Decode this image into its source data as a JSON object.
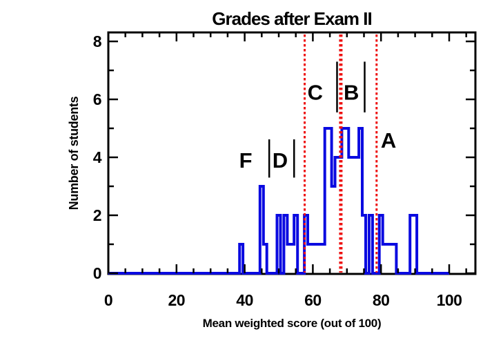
{
  "chart_data": {
    "type": "step-histogram",
    "title": "Grades after Exam II",
    "xlabel": "Mean weighted score (out of 100)",
    "ylabel": "Number of students",
    "xlim": [
      0,
      107.7
    ],
    "ylim": [
      0,
      8.32
    ],
    "x_major_ticks": [
      0,
      20,
      40,
      60,
      80,
      100
    ],
    "x_major_tick_labels": [
      "0",
      "20",
      "40",
      "60",
      "80",
      "100"
    ],
    "x_minor_tick_step": 5,
    "y_major_ticks": [
      0,
      2,
      4,
      6,
      8
    ],
    "y_major_tick_labels": [
      "0",
      "2",
      "4",
      "6",
      "8"
    ],
    "y_minor_ticks": [
      1,
      3,
      5,
      7
    ],
    "grid": false,
    "bin_width": 1,
    "bins": [
      {
        "score": 39,
        "count": 1
      },
      {
        "score": 45,
        "count": 3
      },
      {
        "score": 46,
        "count": 1
      },
      {
        "score": 50,
        "count": 2
      },
      {
        "score": 52,
        "count": 2
      },
      {
        "score": 53,
        "count": 1
      },
      {
        "score": 54,
        "count": 1
      },
      {
        "score": 55,
        "count": 2
      },
      {
        "score": 58,
        "count": 2
      },
      {
        "score": 59,
        "count": 1
      },
      {
        "score": 60,
        "count": 1
      },
      {
        "score": 61,
        "count": 1
      },
      {
        "score": 62,
        "count": 1
      },
      {
        "score": 63,
        "count": 1
      },
      {
        "score": 64,
        "count": 5
      },
      {
        "score": 65,
        "count": 5
      },
      {
        "score": 66,
        "count": 3
      },
      {
        "score": 67,
        "count": 4
      },
      {
        "score": 68,
        "count": 4
      },
      {
        "score": 69,
        "count": 5
      },
      {
        "score": 70,
        "count": 5
      },
      {
        "score": 71,
        "count": 4
      },
      {
        "score": 72,
        "count": 4
      },
      {
        "score": 73,
        "count": 4
      },
      {
        "score": 74,
        "count": 5
      },
      {
        "score": 75,
        "count": 2
      },
      {
        "score": 77,
        "count": 2
      },
      {
        "score": 80,
        "count": 2
      },
      {
        "score": 81,
        "count": 1
      },
      {
        "score": 82,
        "count": 1
      },
      {
        "score": 83,
        "count": 1
      },
      {
        "score": 84,
        "count": 1
      },
      {
        "score": 89,
        "count": 2
      },
      {
        "score": 90,
        "count": 2
      }
    ],
    "cutoff_lines": [
      {
        "score": 57.6,
        "stroke_width": 3
      },
      {
        "score": 68.2,
        "stroke_width": 5
      },
      {
        "score": 78.7,
        "stroke_width": 3
      }
    ],
    "grade_labels": [
      {
        "letter": "F",
        "x": 40.3,
        "y": 3.9
      },
      {
        "letter": "D",
        "x": 50.4,
        "y": 3.9
      },
      {
        "letter": "C",
        "x": 60.7,
        "y": 6.25
      },
      {
        "letter": "B",
        "x": 71.3,
        "y": 6.25
      },
      {
        "letter": "A",
        "x": 82.2,
        "y": 4.6
      }
    ],
    "grade_boundary_marks": [
      {
        "x": 47.2,
        "y1": 3.3,
        "y2": 4.62
      },
      {
        "x": 54.5,
        "y1": 3.3,
        "y2": 4.62
      },
      {
        "x": 67.1,
        "y1": 5.55,
        "y2": 7.3
      },
      {
        "x": 75.2,
        "y1": 5.55,
        "y2": 7.3
      }
    ],
    "legend": null,
    "colors": {
      "histogram": "#0a0ae0",
      "cutoff": "#ee1111",
      "axis": "#000000",
      "background": "#ffffff"
    }
  }
}
